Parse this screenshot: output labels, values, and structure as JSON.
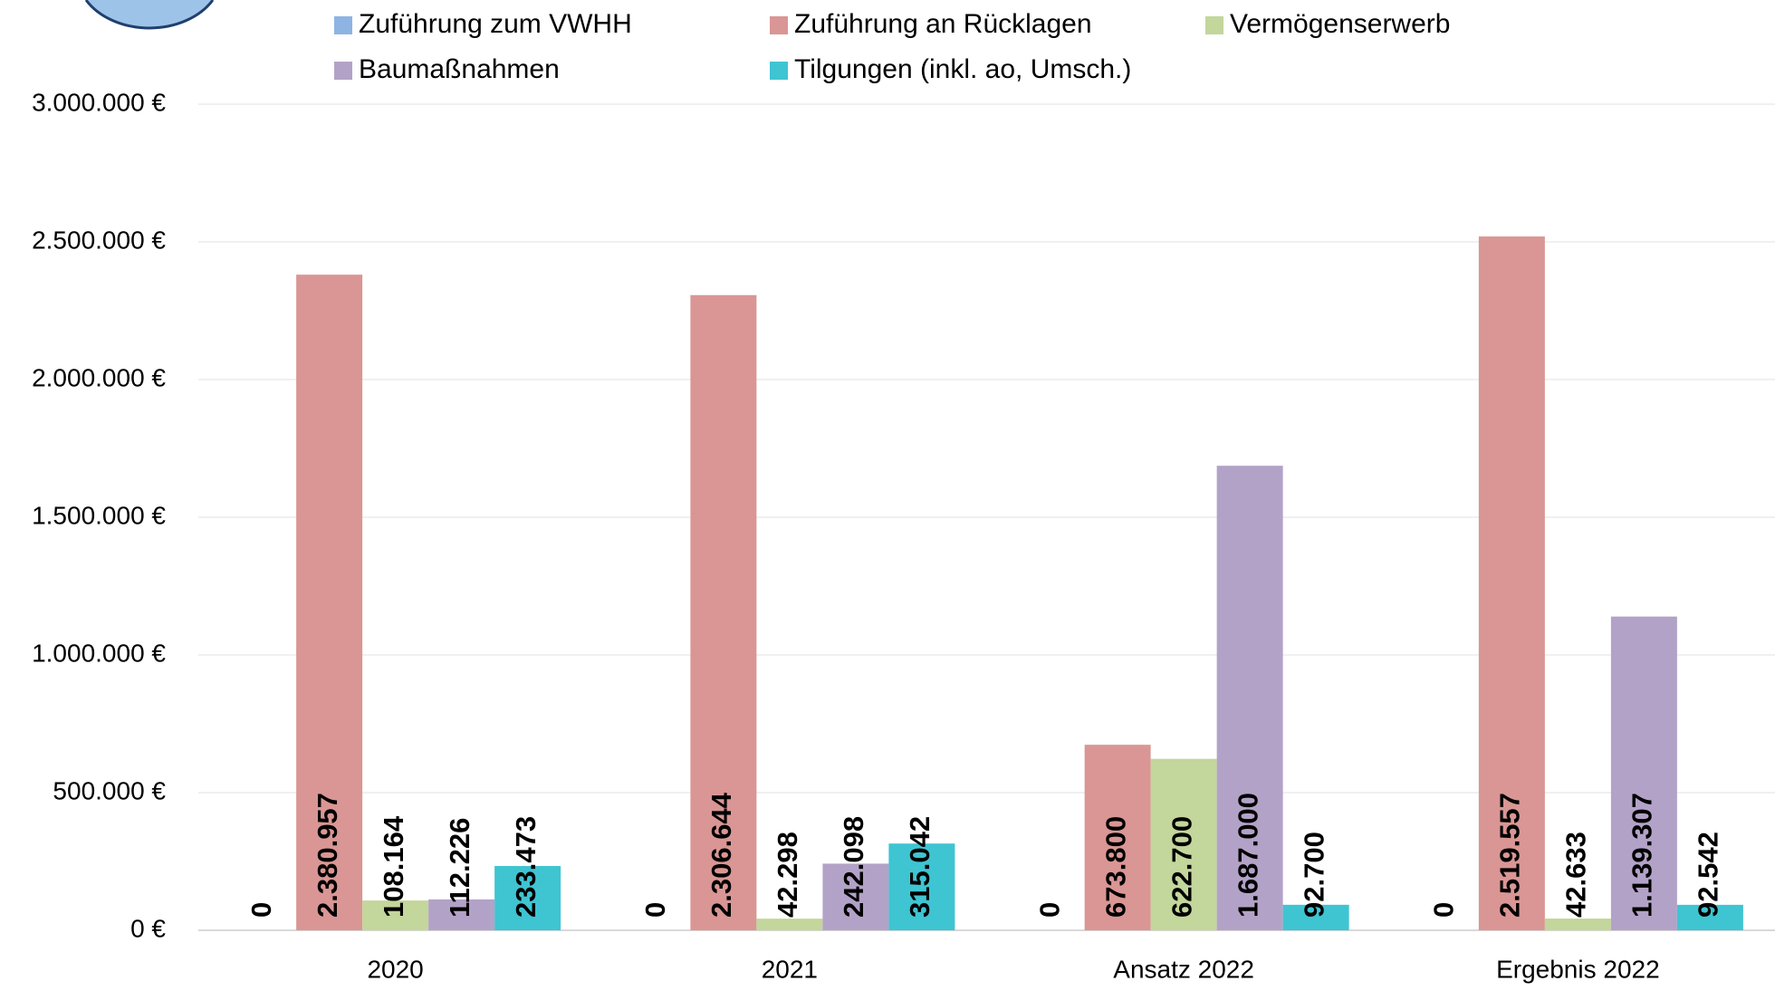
{
  "chart_data": {
    "type": "bar",
    "categories": [
      "2020",
      "2021",
      "Ansatz 2022",
      "Ergebnis 2022"
    ],
    "series": [
      {
        "name": "Zuführung zum VWHH",
        "color": "#8eb4e3",
        "values": [
          0,
          0,
          0,
          0
        ]
      },
      {
        "name": "Zuführung an Rücklagen",
        "color": "#d99694",
        "values": [
          2380957,
          2306644,
          673800,
          2519557
        ],
        "value_labels": [
          "2.380.957",
          "2.306.644",
          "673.800",
          "2.519.557"
        ]
      },
      {
        "name": "Vermögenserwerb",
        "color": "#c3d69b",
        "values": [
          108164,
          42298,
          622700,
          42633
        ],
        "value_labels": [
          "108.164",
          "42.298",
          "622.700",
          "42.633"
        ]
      },
      {
        "name": "Baumaßnahmen",
        "color": "#b3a2c7",
        "values": [
          112226,
          242098,
          1687000,
          1139307
        ],
        "value_labels": [
          "112.226",
          "242.098",
          "1.687.000",
          "1.139.307"
        ]
      },
      {
        "name": "Tilgungen (inkl. ao, Umsch.)",
        "color": "#3fc4d2",
        "values": [
          233473,
          315042,
          92700,
          92542
        ],
        "value_labels": [
          "233.473",
          "315.042",
          "92.700",
          "92.542"
        ]
      }
    ],
    "ylim": [
      0,
      3000000
    ],
    "yticks": [
      {
        "value": 0,
        "label": "0 €"
      },
      {
        "value": 500000,
        "label": "500.000 €"
      },
      {
        "value": 1000000,
        "label": "1.000.000 €"
      },
      {
        "value": 1500000,
        "label": "1.500.000 €"
      },
      {
        "value": 2000000,
        "label": "2.000.000 €"
      },
      {
        "value": 2500000,
        "label": "2.500.000 €"
      },
      {
        "value": 3000000,
        "label": "3.000.000 €"
      }
    ],
    "grid": true,
    "legend": "top"
  }
}
